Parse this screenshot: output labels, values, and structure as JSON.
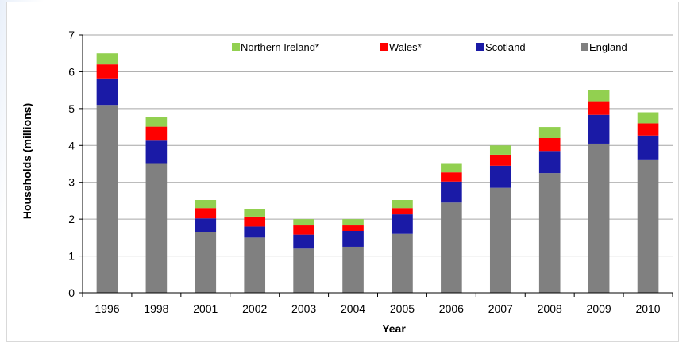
{
  "chart_data": {
    "type": "bar",
    "stacked": true,
    "title": "",
    "xlabel": "Year",
    "ylabel": "Households (millions)",
    "ylim": [
      0,
      7
    ],
    "yticks": [
      "0",
      "1",
      "2",
      "3",
      "4",
      "5",
      "6",
      "7"
    ],
    "grid": true,
    "legend_position": "top",
    "categories": [
      "1996",
      "1998",
      "2001",
      "2002",
      "2003",
      "2004",
      "2005",
      "2006",
      "2007",
      "2008",
      "2009",
      "2010"
    ],
    "series": [
      {
        "name": "England",
        "color": "#808080",
        "values": [
          5.1,
          3.5,
          1.65,
          1.5,
          1.2,
          1.25,
          1.6,
          2.45,
          2.85,
          3.25,
          4.05,
          3.6
        ]
      },
      {
        "name": "Scotland",
        "color": "#1a1aa6",
        "values": [
          0.72,
          0.63,
          0.37,
          0.3,
          0.38,
          0.43,
          0.53,
          0.57,
          0.6,
          0.6,
          0.78,
          0.67
        ]
      },
      {
        "name": "Wales*",
        "color": "#ff0000",
        "values": [
          0.38,
          0.38,
          0.28,
          0.27,
          0.25,
          0.15,
          0.17,
          0.25,
          0.3,
          0.35,
          0.37,
          0.33
        ]
      },
      {
        "name": "Northern Ireland*",
        "color": "#92d050",
        "values": [
          0.3,
          0.27,
          0.22,
          0.2,
          0.17,
          0.17,
          0.22,
          0.23,
          0.25,
          0.3,
          0.3,
          0.3
        ]
      }
    ],
    "legend_order": [
      "Northern Ireland*",
      "Wales*",
      "Scotland",
      "England"
    ]
  }
}
